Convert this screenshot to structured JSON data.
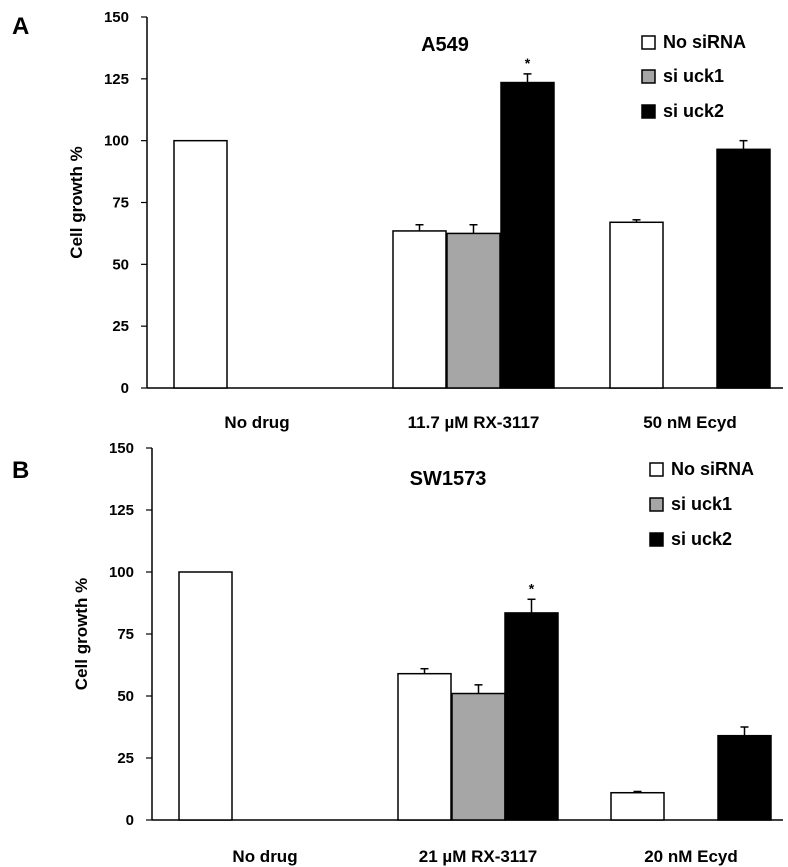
{
  "chart_data": [
    {
      "panel": "A",
      "type": "bar",
      "title": "A549",
      "ylabel": "Cell growth %",
      "xlabel": "",
      "ylim": [
        0,
        150
      ],
      "yticks": [
        "0",
        "25",
        "50",
        "75",
        "100",
        "125",
        "150"
      ],
      "categories": [
        "No drug",
        "11.7 µM RX-3117",
        "50 nM Ecyd"
      ],
      "series": [
        {
          "name": "No siRNA",
          "color": "#ffffff",
          "values": [
            100,
            63.5,
            67
          ],
          "errors": [
            0,
            2.5,
            1
          ]
        },
        {
          "name": "si uck1",
          "color": "#a6a6a6",
          "values": [
            null,
            62.5,
            null
          ],
          "errors": [
            0,
            3.5,
            0
          ]
        },
        {
          "name": "si uck2",
          "color": "#000000",
          "values": [
            null,
            123.5,
            96.5
          ],
          "errors": [
            0,
            3.5,
            3.5
          ]
        }
      ],
      "annotations": [
        {
          "text": "*",
          "category": 1,
          "series": 2
        }
      ],
      "legend_position": "top-right",
      "grid": false
    },
    {
      "panel": "B",
      "type": "bar",
      "title": "SW1573",
      "ylabel": "Cell growth %",
      "xlabel": "",
      "ylim": [
        0,
        150
      ],
      "yticks": [
        "0",
        "25",
        "50",
        "75",
        "100",
        "125",
        "150"
      ],
      "categories": [
        "No drug",
        "21 µM RX-3117",
        "20 nM Ecyd"
      ],
      "series": [
        {
          "name": "No siRNA",
          "color": "#ffffff",
          "values": [
            100,
            59,
            11
          ],
          "errors": [
            0,
            2,
            0.5
          ]
        },
        {
          "name": "si uck1",
          "color": "#a6a6a6",
          "values": [
            null,
            51,
            null
          ],
          "errors": [
            0,
            3.5,
            0
          ]
        },
        {
          "name": "si uck2",
          "color": "#000000",
          "values": [
            null,
            83.5,
            34
          ],
          "errors": [
            0,
            5.5,
            3.5
          ]
        }
      ],
      "annotations": [
        {
          "text": "*",
          "category": 1,
          "series": 2
        }
      ],
      "legend_position": "top-right",
      "grid": false
    }
  ]
}
